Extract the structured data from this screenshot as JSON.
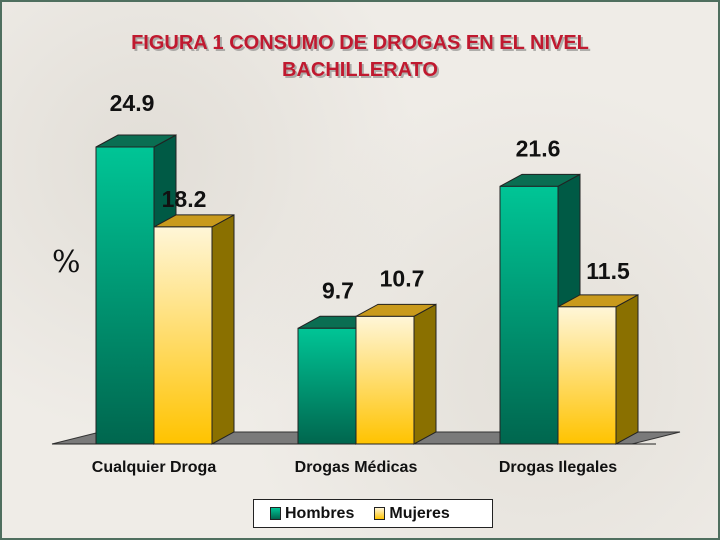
{
  "chart_data": {
    "type": "bar",
    "title": "FIGURA 1 CONSUMO DE DROGAS EN EL NIVEL BACHILLERATO",
    "title_lines": [
      "FIGURA 1 CONSUMO DE DROGAS EN EL NIVEL",
      "BACHILLERATO"
    ],
    "ylabel": "%",
    "xlabel": "",
    "categories": [
      "Cualquier Droga",
      "Drogas Médicas",
      "Drogas Ilegales"
    ],
    "series": [
      {
        "name": "Hombres",
        "values": [
          24.9,
          9.7,
          21.6
        ],
        "color": "#00b894"
      },
      {
        "name": "Mujeres",
        "values": [
          18.2,
          10.7,
          11.5
        ],
        "color": "#ffd24a"
      }
    ],
    "ylim": [
      0,
      25
    ],
    "grid": false,
    "legend_position": "bottom",
    "three_d": true
  }
}
